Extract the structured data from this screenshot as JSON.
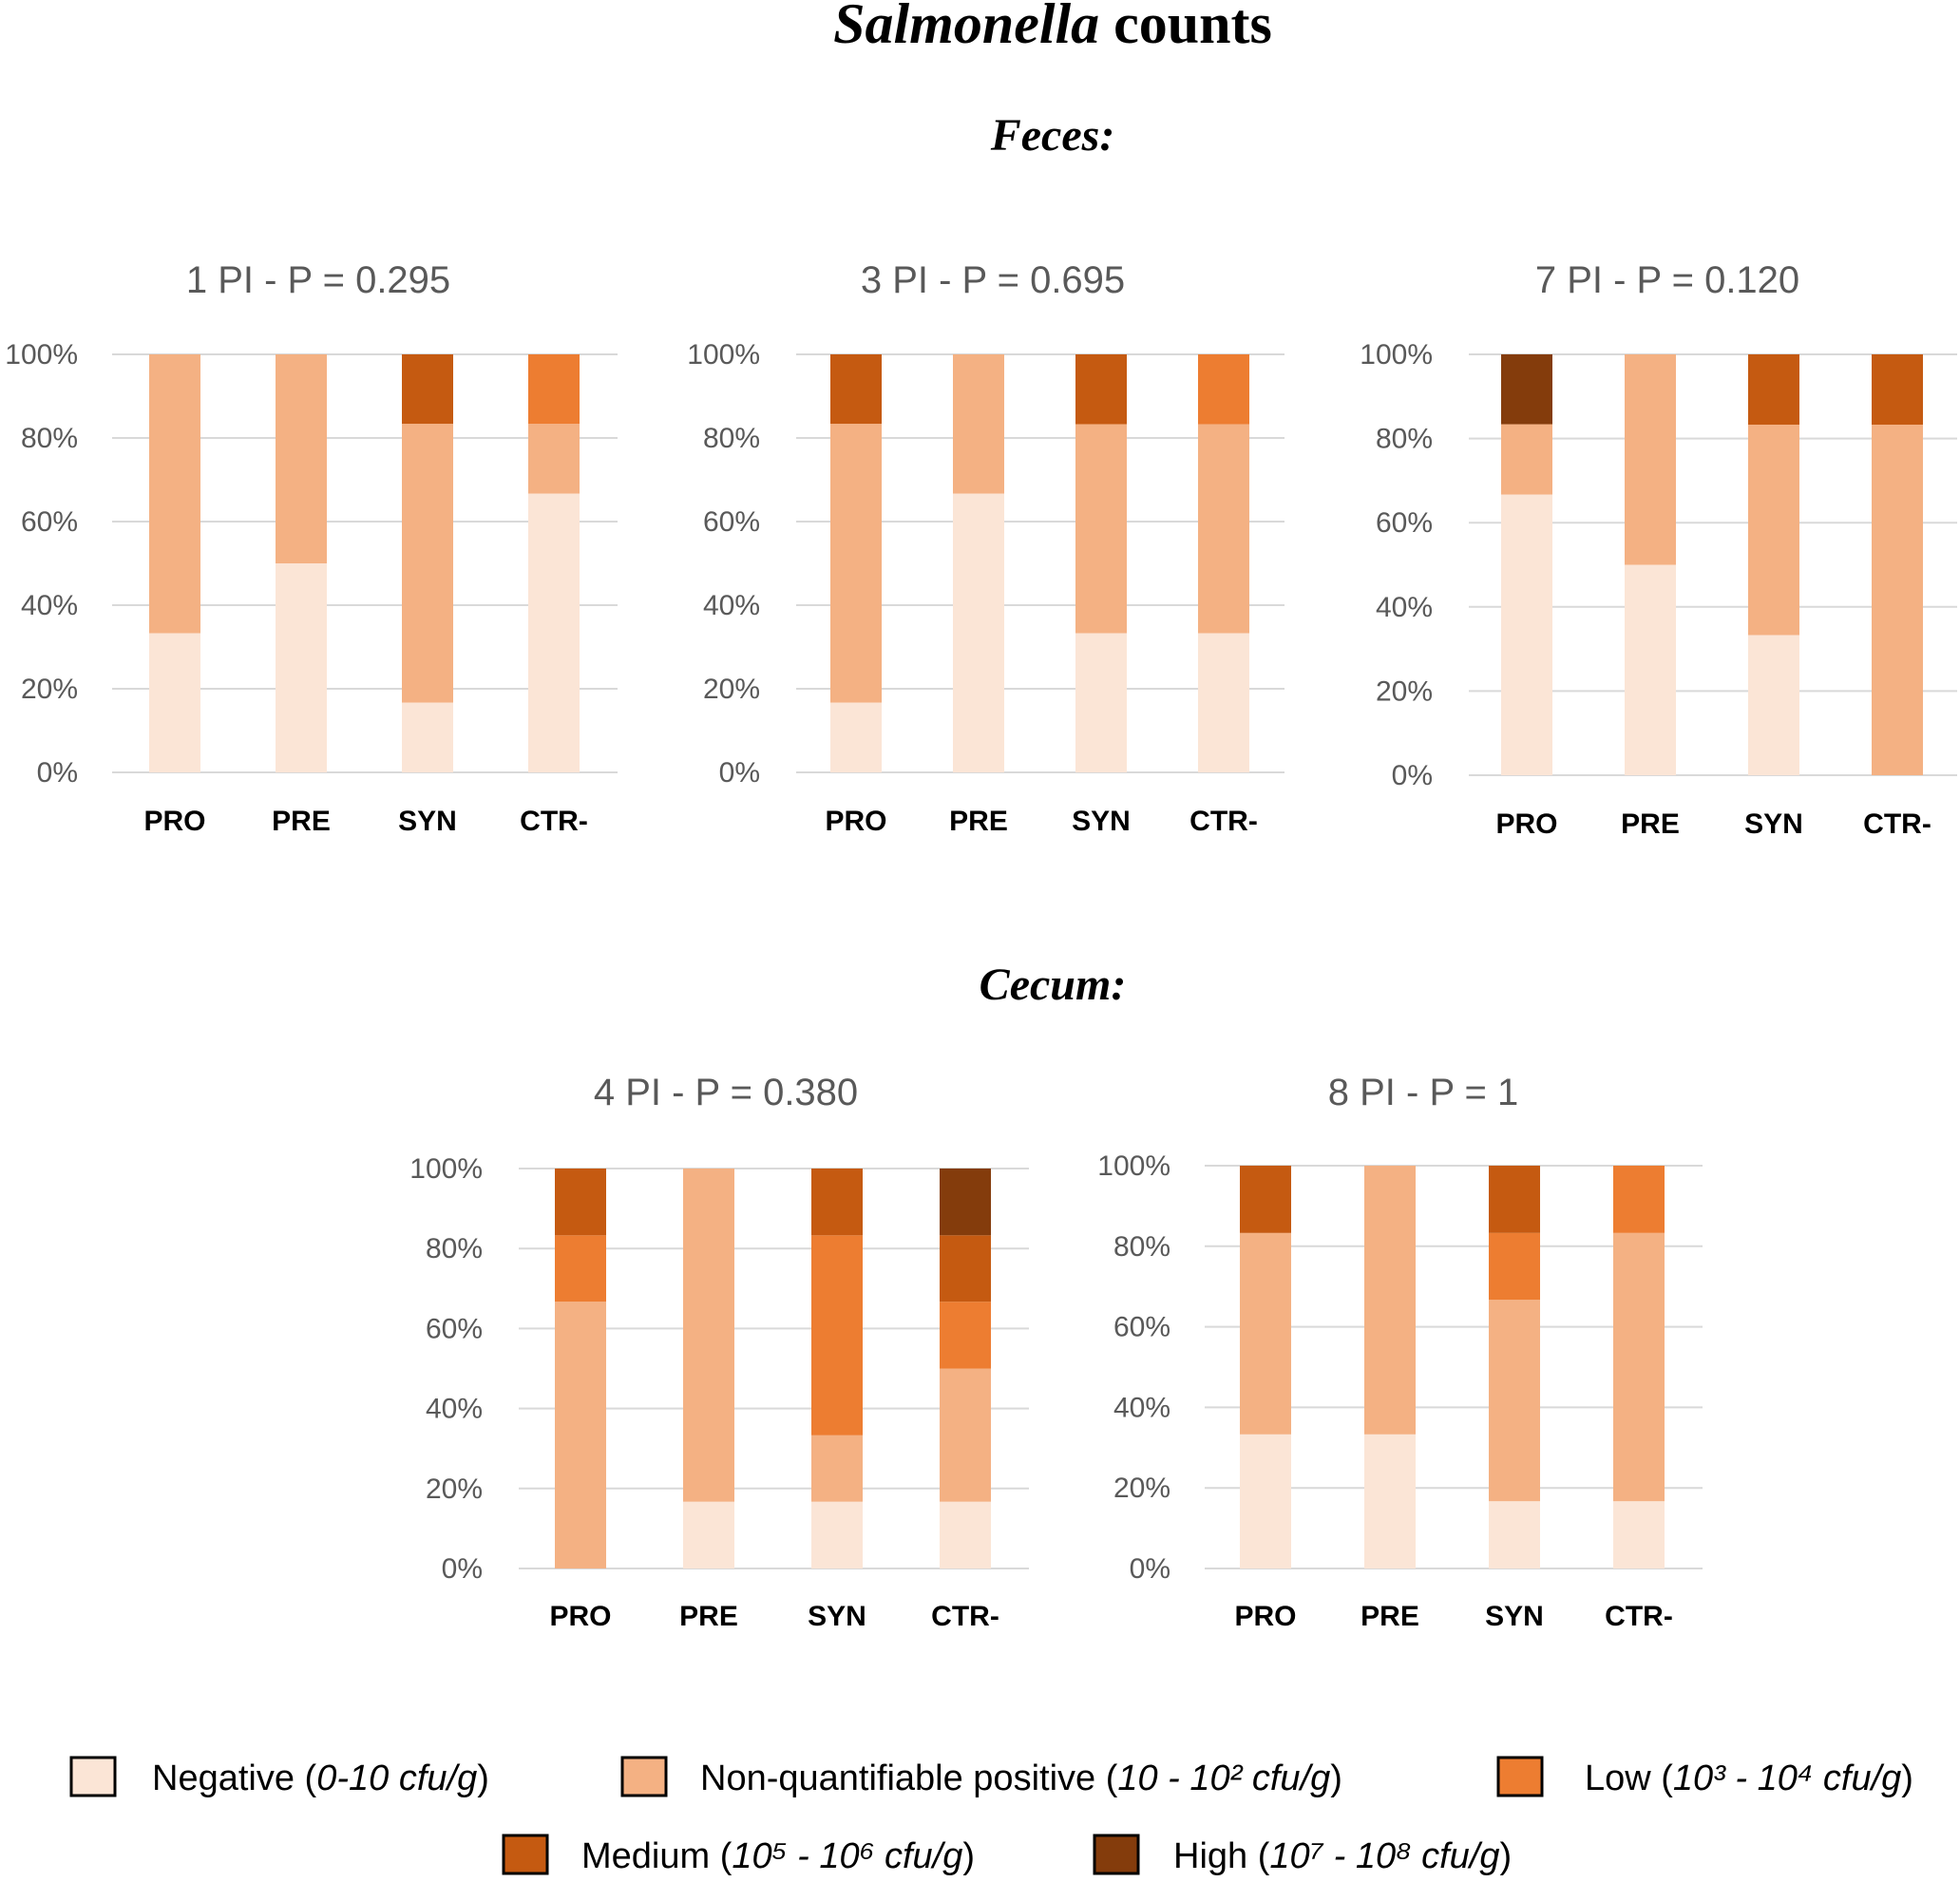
{
  "title": {
    "italic": "Salmonella",
    "rest": " counts"
  },
  "sections": [
    {
      "id": "feces",
      "label": "Feces:"
    },
    {
      "id": "cecum",
      "label": "Cecum:"
    }
  ],
  "colors": {
    "negative": "#FBE5D6",
    "nonquant": "#F4B183",
    "low": "#ED7D31",
    "medium": "#C55A11",
    "high": "#843C0C",
    "grid": "#D9D9D9",
    "title_gray": "#595959",
    "tick_gray": "#595959",
    "text": "#000000"
  },
  "legend": [
    {
      "key": "negative",
      "name": "Negative",
      "range": "0-10 cfu/g"
    },
    {
      "key": "nonquant",
      "name": "Non-quantifiable positive",
      "range": "10 - 10² cfu/g"
    },
    {
      "key": "low",
      "name": "Low",
      "range": "10³ - 10⁴ cfu/g"
    },
    {
      "key": "medium",
      "name": "Medium",
      "range": "10⁵ - 10⁶ cfu/g"
    },
    {
      "key": "high",
      "name": "High",
      "range": "10⁷ - 10⁸ cfu/g"
    }
  ],
  "chart_data": [
    {
      "type": "bar",
      "stacked": true,
      "section": "feces",
      "title": "1 PI - P = 0.295",
      "categories": [
        "PRO",
        "PRE",
        "SYN",
        "CTR-"
      ],
      "y_ticks": [
        "0%",
        "20%",
        "40%",
        "60%",
        "80%",
        "100%"
      ],
      "ylim": [
        0,
        100
      ],
      "series": [
        {
          "name": "Negative",
          "key": "negative",
          "values": [
            33.3,
            50,
            16.7,
            66.7
          ]
        },
        {
          "name": "Non-quantifiable positive",
          "key": "nonquant",
          "values": [
            66.7,
            50,
            66.7,
            16.7
          ]
        },
        {
          "name": "Low",
          "key": "low",
          "values": [
            0,
            0,
            0,
            16.6
          ]
        },
        {
          "name": "Medium",
          "key": "medium",
          "values": [
            0,
            0,
            16.6,
            0
          ]
        },
        {
          "name": "High",
          "key": "high",
          "values": [
            0,
            0,
            0,
            0
          ]
        }
      ]
    },
    {
      "type": "bar",
      "stacked": true,
      "section": "feces",
      "title": "3 PI - P = 0.695",
      "categories": [
        "PRO",
        "PRE",
        "SYN",
        "CTR-"
      ],
      "y_ticks": [
        "0%",
        "20%",
        "40%",
        "60%",
        "80%",
        "100%"
      ],
      "ylim": [
        0,
        100
      ],
      "series": [
        {
          "name": "Negative",
          "key": "negative",
          "values": [
            16.7,
            66.7,
            33.3,
            33.3
          ]
        },
        {
          "name": "Non-quantifiable positive",
          "key": "nonquant",
          "values": [
            66.7,
            33.3,
            50,
            50
          ]
        },
        {
          "name": "Low",
          "key": "low",
          "values": [
            0,
            0,
            0,
            16.7
          ]
        },
        {
          "name": "Medium",
          "key": "medium",
          "values": [
            16.6,
            0,
            16.7,
            0
          ]
        },
        {
          "name": "High",
          "key": "high",
          "values": [
            0,
            0,
            0,
            0
          ]
        }
      ]
    },
    {
      "type": "bar",
      "stacked": true,
      "section": "feces",
      "title": "7 PI - P = 0.120",
      "categories": [
        "PRO",
        "PRE",
        "SYN",
        "CTR-"
      ],
      "y_ticks": [
        "0%",
        "20%",
        "40%",
        "60%",
        "80%",
        "100%"
      ],
      "ylim": [
        0,
        100
      ],
      "series": [
        {
          "name": "Negative",
          "key": "negative",
          "values": [
            66.7,
            50,
            33.3,
            0
          ]
        },
        {
          "name": "Non-quantifiable positive",
          "key": "nonquant",
          "values": [
            16.7,
            50,
            50,
            83.3
          ]
        },
        {
          "name": "Low",
          "key": "low",
          "values": [
            0,
            0,
            0,
            0
          ]
        },
        {
          "name": "Medium",
          "key": "medium",
          "values": [
            0,
            0,
            16.7,
            16.7
          ]
        },
        {
          "name": "High",
          "key": "high",
          "values": [
            16.6,
            0,
            0,
            0
          ]
        }
      ]
    },
    {
      "type": "bar",
      "stacked": true,
      "section": "cecum",
      "title": "4 PI - P = 0.380",
      "categories": [
        "PRO",
        "PRE",
        "SYN",
        "CTR-"
      ],
      "y_ticks": [
        "0%",
        "20%",
        "40%",
        "60%",
        "80%",
        "100%"
      ],
      "ylim": [
        0,
        100
      ],
      "series": [
        {
          "name": "Negative",
          "key": "negative",
          "values": [
            0,
            16.7,
            16.7,
            16.7
          ]
        },
        {
          "name": "Non-quantifiable positive",
          "key": "nonquant",
          "values": [
            66.7,
            83.3,
            16.6,
            33.3
          ]
        },
        {
          "name": "Low",
          "key": "low",
          "values": [
            16.6,
            0,
            50,
            16.7
          ]
        },
        {
          "name": "Medium",
          "key": "medium",
          "values": [
            16.7,
            0,
            16.7,
            16.6
          ]
        },
        {
          "name": "High",
          "key": "high",
          "values": [
            0,
            0,
            0,
            16.7
          ]
        }
      ]
    },
    {
      "type": "bar",
      "stacked": true,
      "section": "cecum",
      "title": "8 PI - P = 1",
      "categories": [
        "PRO",
        "PRE",
        "SYN",
        "CTR-"
      ],
      "y_ticks": [
        "0%",
        "20%",
        "40%",
        "60%",
        "80%",
        "100%"
      ],
      "ylim": [
        0,
        100
      ],
      "series": [
        {
          "name": "Negative",
          "key": "negative",
          "values": [
            33.3,
            33.3,
            16.7,
            16.7
          ]
        },
        {
          "name": "Non-quantifiable positive",
          "key": "nonquant",
          "values": [
            50,
            66.7,
            50,
            66.6
          ]
        },
        {
          "name": "Low",
          "key": "low",
          "values": [
            0,
            0,
            16.6,
            16.7
          ]
        },
        {
          "name": "Medium",
          "key": "medium",
          "values": [
            16.7,
            0,
            16.7,
            0
          ]
        },
        {
          "name": "High",
          "key": "high",
          "values": [
            0,
            0,
            0,
            0
          ]
        }
      ]
    }
  ]
}
